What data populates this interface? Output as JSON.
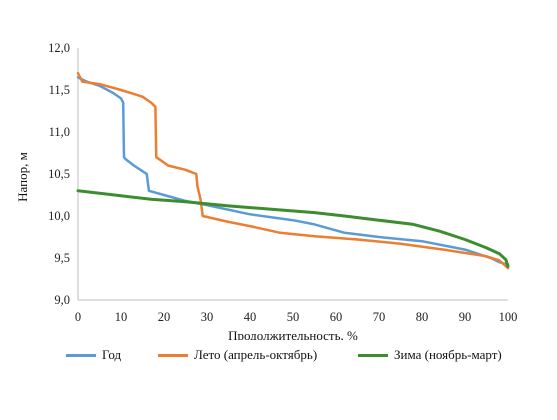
{
  "chart_data": {
    "type": "line",
    "xlabel": "Продолжительность, %",
    "ylabel": "Напор, м",
    "xlim": [
      0,
      100
    ],
    "ylim": [
      9.0,
      12.0
    ],
    "x_ticks": [
      "0",
      "10",
      "20",
      "30",
      "40",
      "50",
      "60",
      "70",
      "80",
      "90",
      "100"
    ],
    "y_ticks": [
      "9,0",
      "9,5",
      "10,0",
      "10,5",
      "11,0",
      "11,5",
      "12,0"
    ],
    "grid": false,
    "legend_position": "bottom",
    "series": [
      {
        "name": "Год",
        "color": "#5b9bd5",
        "points": [
          [
            0,
            11.65
          ],
          [
            2,
            11.6
          ],
          [
            5,
            11.55
          ],
          [
            8,
            11.47
          ],
          [
            10,
            11.4
          ],
          [
            10.5,
            11.35
          ],
          [
            10.6,
            11.0
          ],
          [
            10.7,
            10.7
          ],
          [
            11,
            10.68
          ],
          [
            13,
            10.6
          ],
          [
            16,
            10.5
          ],
          [
            16.5,
            10.3
          ],
          [
            20,
            10.25
          ],
          [
            25,
            10.18
          ],
          [
            30,
            10.13
          ],
          [
            40,
            10.02
          ],
          [
            50,
            9.95
          ],
          [
            55,
            9.9
          ],
          [
            62,
            9.8
          ],
          [
            70,
            9.75
          ],
          [
            80,
            9.7
          ],
          [
            90,
            9.6
          ],
          [
            96,
            9.5
          ],
          [
            98,
            9.45
          ],
          [
            100,
            9.42
          ]
        ]
      },
      {
        "name": "Лето (апрель-октябрь)",
        "color": "#ed7d31",
        "points": [
          [
            0,
            11.7
          ],
          [
            1,
            11.6
          ],
          [
            5,
            11.57
          ],
          [
            10,
            11.5
          ],
          [
            15,
            11.42
          ],
          [
            17,
            11.35
          ],
          [
            18,
            11.3
          ],
          [
            18.1,
            11.0
          ],
          [
            18.2,
            10.7
          ],
          [
            21,
            10.6
          ],
          [
            25,
            10.55
          ],
          [
            27.5,
            10.5
          ],
          [
            27.8,
            10.35
          ],
          [
            28.5,
            10.2
          ],
          [
            29,
            10.0
          ],
          [
            35,
            9.93
          ],
          [
            40,
            9.88
          ],
          [
            47,
            9.8
          ],
          [
            55,
            9.76
          ],
          [
            65,
            9.72
          ],
          [
            75,
            9.67
          ],
          [
            85,
            9.6
          ],
          [
            95,
            9.52
          ],
          [
            98,
            9.47
          ],
          [
            100,
            9.38
          ]
        ]
      },
      {
        "name": "Зима (ноябрь-март)",
        "color": "#3b8d2e",
        "points": [
          [
            0,
            10.3
          ],
          [
            10,
            10.24
          ],
          [
            17,
            10.2
          ],
          [
            25,
            10.17
          ],
          [
            35,
            10.12
          ],
          [
            45,
            10.08
          ],
          [
            55,
            10.04
          ],
          [
            62,
            10.0
          ],
          [
            70,
            9.95
          ],
          [
            78,
            9.9
          ],
          [
            84,
            9.82
          ],
          [
            90,
            9.72
          ],
          [
            95,
            9.62
          ],
          [
            98,
            9.55
          ],
          [
            99.5,
            9.48
          ],
          [
            100,
            9.4
          ]
        ]
      }
    ]
  }
}
